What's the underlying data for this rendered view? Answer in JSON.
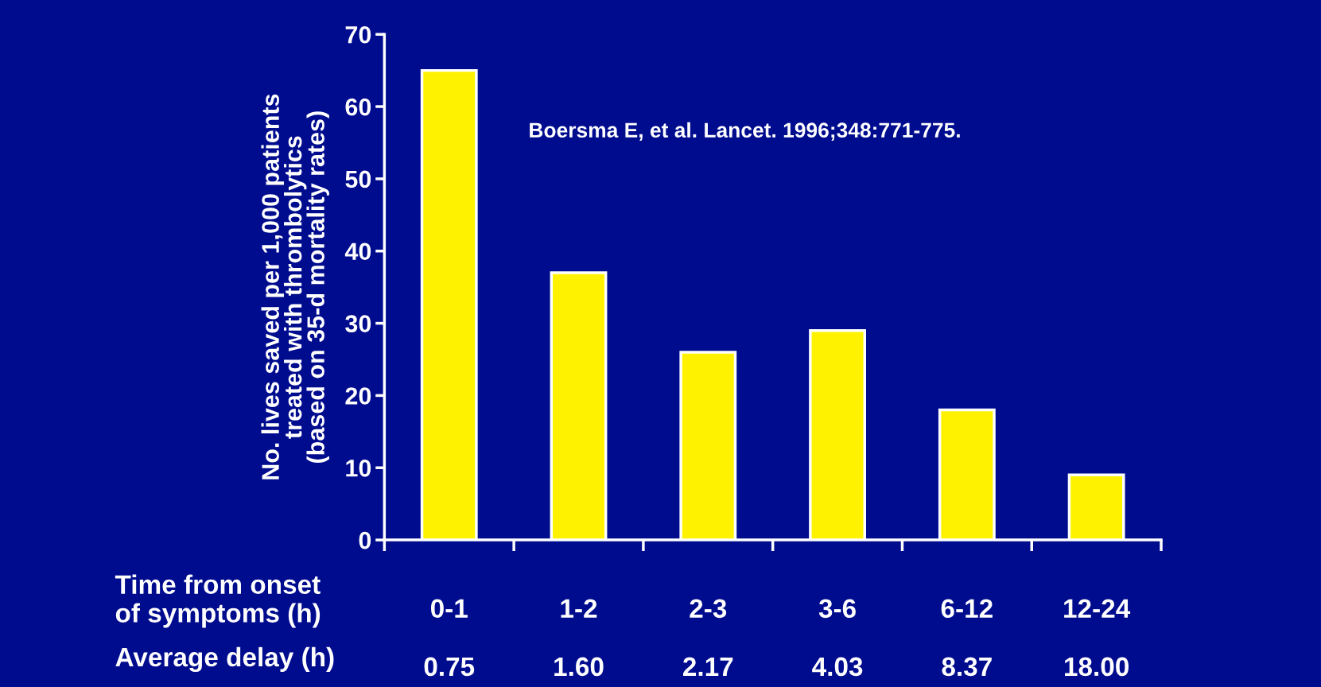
{
  "chart_data": {
    "type": "bar",
    "ylabel": "No. lives saved per 1,000 patients\ntreated with thrombolytics\n(based on 35-d mortality rates)",
    "xlabel": "Time from onset\nof symptoms (h)",
    "categories": [
      "0-1",
      "1-2",
      "2-3",
      "3-6",
      "6-12",
      "12-24"
    ],
    "values": [
      65,
      37,
      26,
      29,
      18,
      9
    ],
    "color": "#fff200",
    "ylim": [
      0,
      70
    ],
    "yticks": [
      0,
      10,
      20,
      30,
      40,
      50,
      60,
      70
    ],
    "grid": false,
    "annotations": [
      "Boersma E, et al. Lancet. 1996;348:771-775.",
      "Average delay (h)",
      "0.75",
      "1.60",
      "2.17",
      "4.03",
      "8.37",
      "18.00"
    ]
  }
}
